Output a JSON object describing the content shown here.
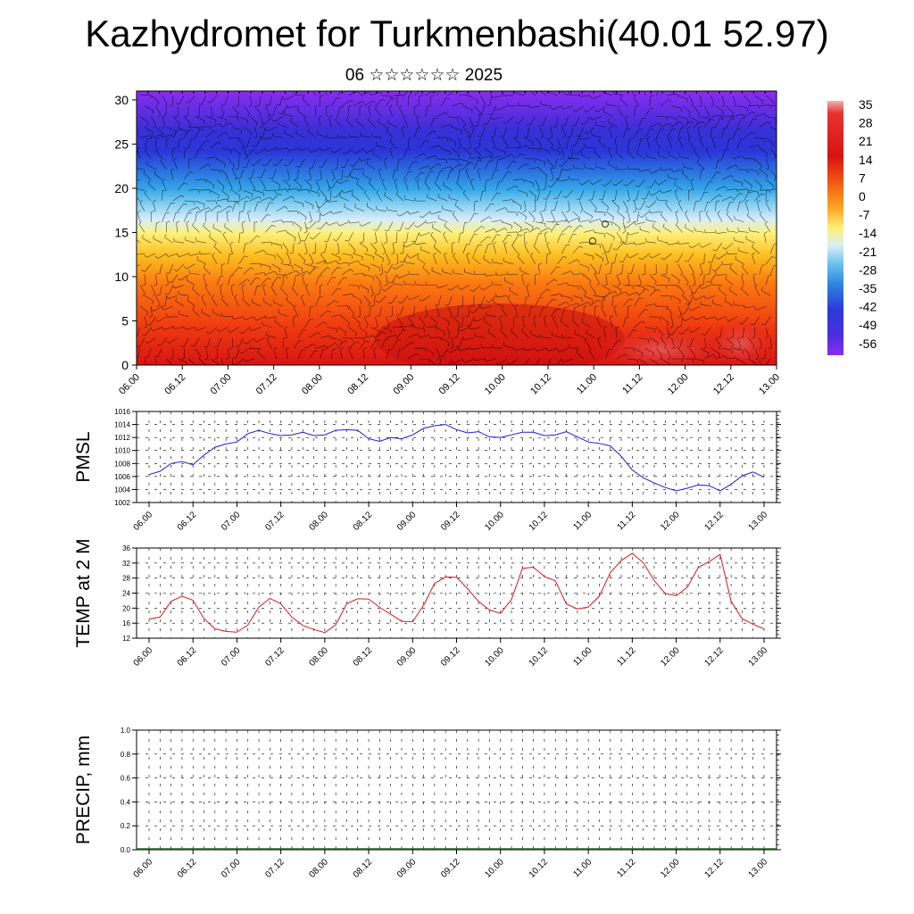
{
  "title": "Kazhydromet for Turkmenbashi(40.01 52.97)",
  "subtitle": "06 ☆☆☆☆☆☆ 2025",
  "colors": {
    "pmsl_line": "#1c1cdc",
    "temp_line": "#e01818",
    "barb": "#000000",
    "frame": "#000000"
  },
  "chart_data": [
    {
      "type": "heatmap",
      "name": "section",
      "x_ticks": [
        "06.00",
        "06.12",
        "07.00",
        "07.12",
        "08.00",
        "08.12",
        "09.00",
        "09.12",
        "10.00",
        "10.12",
        "11.00",
        "11.12",
        "12.00",
        "12.12",
        "13.00"
      ],
      "y_ticks": [
        "0",
        "5",
        "10",
        "15",
        "20",
        "25",
        "30"
      ],
      "ylim": [
        0,
        31
      ],
      "colorbar": {
        "labels": [
          "35",
          "28",
          "21",
          "14",
          "7",
          "0",
          "-7",
          "-14",
          "-21",
          "-28",
          "-35",
          "-42",
          "-49",
          "-56"
        ],
        "range": [
          -63,
          38
        ]
      }
    },
    {
      "type": "line",
      "name": "pmsl",
      "ylabel": "PMSL",
      "x_ticks": [
        "06.00",
        "06.12",
        "07.00",
        "07.12",
        "08.00",
        "08.12",
        "09.00",
        "09.12",
        "10.00",
        "10.12",
        "11.00",
        "11.12",
        "12.00",
        "12.12",
        "13.00"
      ],
      "y_ticks": [
        "1002",
        "1004",
        "1006",
        "1008",
        "1010",
        "1012",
        "1014",
        "1016"
      ],
      "ylim": [
        1002,
        1016
      ],
      "values": [
        1006.3,
        1006.8,
        1008.0,
        1008.3,
        1007.8,
        1009.3,
        1010.5,
        1011.0,
        1011.3,
        1012.6,
        1013.1,
        1012.6,
        1012.3,
        1012.4,
        1012.8,
        1012.3,
        1012.4,
        1013.1,
        1013.2,
        1013.1,
        1011.8,
        1011.4,
        1012.0,
        1011.8,
        1012.4,
        1013.4,
        1013.8,
        1014.0,
        1013.2,
        1012.7,
        1012.9,
        1012.1,
        1012.0,
        1012.4,
        1012.8,
        1012.8,
        1012.3,
        1012.4,
        1012.9,
        1012.1,
        1011.3,
        1011.1,
        1010.7,
        1009.1,
        1007.0,
        1005.8,
        1005.0,
        1004.3,
        1003.8,
        1004.2,
        1004.7,
        1004.6,
        1003.8,
        1004.8,
        1006.1,
        1006.7,
        1005.9
      ]
    },
    {
      "type": "line",
      "name": "temp",
      "ylabel": "TEMP at 2 M",
      "x_ticks": [
        "06.00",
        "06.12",
        "07.00",
        "07.12",
        "08.00",
        "08.12",
        "09.00",
        "09.12",
        "10.00",
        "10.12",
        "11.00",
        "11.12",
        "12.00",
        "12.12",
        "13.00"
      ],
      "y_ticks": [
        "12",
        "16",
        "20",
        "24",
        "28",
        "32",
        "36"
      ],
      "ylim": [
        12,
        36
      ],
      "values": [
        17.1,
        17.6,
        21.8,
        23.2,
        22.1,
        17.2,
        14.5,
        13.8,
        13.6,
        15.5,
        20.3,
        22.6,
        21.2,
        17.6,
        15.4,
        14.3,
        13.5,
        15.6,
        21.2,
        22.5,
        22.4,
        20.2,
        18.4,
        16.5,
        16.4,
        20.8,
        26.6,
        28.3,
        28.2,
        25.2,
        21.8,
        19.5,
        18.6,
        22.3,
        30.6,
        30.9,
        28.4,
        27.3,
        21.1,
        19.8,
        20.3,
        23.2,
        29.5,
        32.7,
        34.6,
        32.1,
        27.3,
        23.9,
        23.3,
        25.5,
        30.8,
        32.4,
        34.3,
        21.8,
        17.2,
        15.7,
        14.5
      ]
    },
    {
      "type": "line",
      "name": "precip",
      "ylabel": "PRECIP, mm",
      "x_ticks": [
        "06.00",
        "06.12",
        "07.00",
        "07.12",
        "08.00",
        "08.12",
        "09.00",
        "09.12",
        "10.00",
        "10.12",
        "11.00",
        "11.12",
        "12.00",
        "12.12",
        "13.00"
      ],
      "y_ticks": [
        "0.0",
        "0.2",
        "0.4",
        "0.6",
        "0.8",
        "1.0"
      ],
      "ylim": [
        0,
        1
      ]
    }
  ]
}
